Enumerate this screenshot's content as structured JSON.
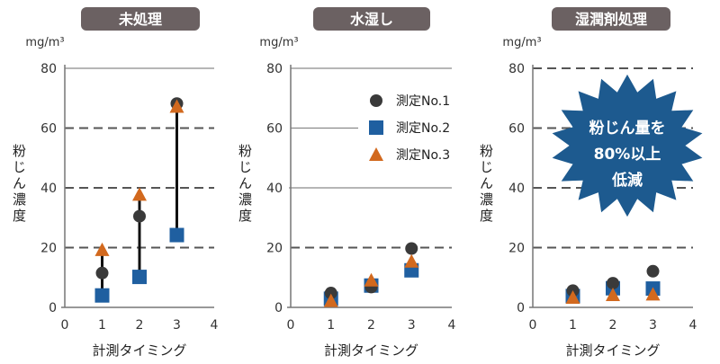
{
  "chart_data": [
    {
      "type": "scatter",
      "title": "未処理",
      "unit": "mg/m³",
      "ylabel": "粉じん濃度",
      "xlabel": "計測タイミング",
      "xlim": [
        0,
        4
      ],
      "ylim": [
        0,
        80
      ],
      "x_ticks": [
        0,
        1,
        2,
        3,
        4
      ],
      "y_ticks": [
        0,
        20,
        40,
        60,
        80
      ],
      "series": [
        {
          "name": "測定No.1",
          "marker": "circle",
          "color": "#3a3a3a",
          "x": [
            1,
            2,
            3
          ],
          "values": [
            11.5,
            30.5,
            68.2
          ]
        },
        {
          "name": "測定No.2",
          "marker": "square",
          "color": "#1f5fa0",
          "x": [
            1,
            2,
            3
          ],
          "values": [
            4.0,
            10.2,
            24.2
          ]
        },
        {
          "name": "測定No.3",
          "marker": "triangle",
          "color": "#d2691e",
          "x": [
            1,
            2,
            3
          ],
          "values": [
            19.3,
            37.8,
            67.2
          ]
        }
      ],
      "range_lines": true
    },
    {
      "type": "scatter",
      "title": "水湿し",
      "unit": "mg/m³",
      "ylabel": "粉じん濃度",
      "xlabel": "計測タイミング",
      "xlim": [
        0,
        4
      ],
      "ylim": [
        0,
        80
      ],
      "x_ticks": [
        0,
        1,
        2,
        3,
        4
      ],
      "y_ticks": [
        0,
        20,
        40,
        60,
        80
      ],
      "series": [
        {
          "name": "測定No.1",
          "marker": "circle",
          "color": "#3a3a3a",
          "x": [
            1,
            2,
            3
          ],
          "values": [
            4.8,
            6.8,
            19.7
          ]
        },
        {
          "name": "測定No.2",
          "marker": "square",
          "color": "#1f5fa0",
          "x": [
            1,
            2,
            3
          ],
          "values": [
            2.9,
            7.3,
            12.4
          ]
        },
        {
          "name": "測定No.3",
          "marker": "triangle",
          "color": "#d2691e",
          "x": [
            1,
            2,
            3
          ],
          "values": [
            2.2,
            9.1,
            15.4
          ]
        }
      ],
      "legend": {
        "position": "top-right",
        "entries": [
          "測定No.1",
          "測定No.2",
          "測定No.3"
        ]
      }
    },
    {
      "type": "scatter",
      "title": "湿潤剤処理",
      "unit": "mg/m³",
      "ylabel": "粉じん濃度",
      "xlabel": "計測タイミング",
      "xlim": [
        0,
        4
      ],
      "ylim": [
        0,
        80
      ],
      "x_ticks": [
        0,
        1,
        2,
        3,
        4
      ],
      "y_ticks": [
        0,
        20,
        40,
        60,
        80
      ],
      "series": [
        {
          "name": "測定No.1",
          "marker": "circle",
          "color": "#3a3a3a",
          "x": [
            1,
            2,
            3
          ],
          "values": [
            5.6,
            8.1,
            12.1
          ]
        },
        {
          "name": "測定No.2",
          "marker": "square",
          "color": "#1f5fa0",
          "x": [
            1,
            2,
            3
          ],
          "values": [
            3.8,
            6.4,
            6.3
          ]
        },
        {
          "name": "測定No.3",
          "marker": "triangle",
          "color": "#d2691e",
          "x": [
            1,
            2,
            3
          ],
          "values": [
            3.3,
            4.2,
            4.4
          ]
        }
      ],
      "annotation": {
        "lines": [
          "粉じん量を",
          "80%以上",
          "低減"
        ],
        "color": "#1d5a8f"
      }
    }
  ]
}
